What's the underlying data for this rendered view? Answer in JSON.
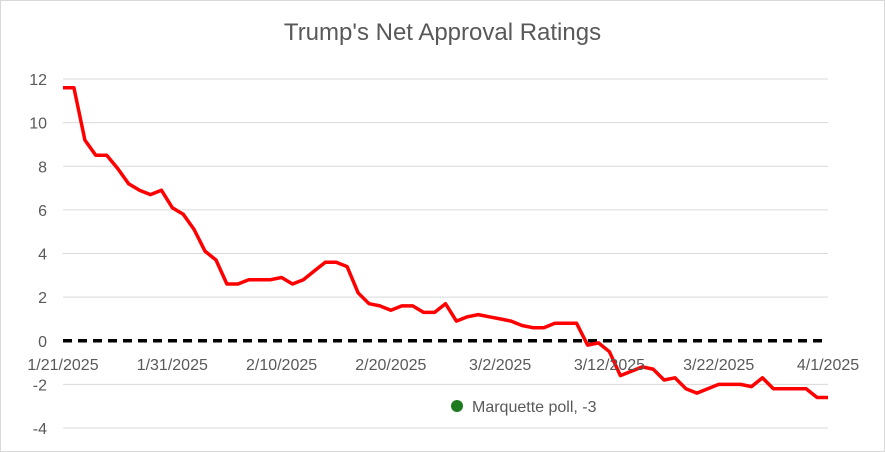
{
  "chart_data": {
    "type": "line",
    "title": "Trump's Net Approval Ratings",
    "xlabel": "",
    "ylabel": "",
    "ylim": [
      -4,
      12
    ],
    "y_ticks": [
      12,
      10,
      8,
      6,
      4,
      2,
      0,
      -2,
      -4
    ],
    "x_ticks": [
      "1/21/2025",
      "1/31/2025",
      "2/10/2025",
      "2/20/2025",
      "3/2/2025",
      "3/12/2025",
      "3/22/2025",
      "4/1/2025"
    ],
    "grid": true,
    "series": [
      {
        "color": "#ff0000",
        "x": [
          "1/21/2025",
          "1/22/2025",
          "1/23/2025",
          "1/24/2025",
          "1/25/2025",
          "1/26/2025",
          "1/27/2025",
          "1/28/2025",
          "1/29/2025",
          "1/30/2025",
          "1/31/2025",
          "2/1/2025",
          "2/2/2025",
          "2/3/2025",
          "2/4/2025",
          "2/5/2025",
          "2/6/2025",
          "2/7/2025",
          "2/8/2025",
          "2/9/2025",
          "2/10/2025",
          "2/11/2025",
          "2/12/2025",
          "2/13/2025",
          "2/14/2025",
          "2/15/2025",
          "2/16/2025",
          "2/17/2025",
          "2/18/2025",
          "2/19/2025",
          "2/20/2025",
          "2/21/2025",
          "2/22/2025",
          "2/23/2025",
          "2/24/2025",
          "2/25/2025",
          "2/26/2025",
          "2/27/2025",
          "2/28/2025",
          "3/1/2025",
          "3/2/2025",
          "3/3/2025",
          "3/4/2025",
          "3/5/2025",
          "3/6/2025",
          "3/7/2025",
          "3/8/2025",
          "3/9/2025",
          "3/10/2025",
          "3/11/2025",
          "3/12/2025",
          "3/13/2025",
          "3/14/2025",
          "3/15/2025",
          "3/16/2025",
          "3/17/2025",
          "3/18/2025",
          "3/19/2025",
          "3/20/2025",
          "3/21/2025",
          "3/22/2025",
          "3/23/2025",
          "3/24/2025",
          "3/25/2025",
          "3/26/2025",
          "3/27/2025",
          "3/28/2025",
          "3/29/2025",
          "3/30/2025",
          "3/31/2025",
          "4/1/2025"
        ],
        "values": [
          11.6,
          11.6,
          9.2,
          8.5,
          8.5,
          7.9,
          7.2,
          6.9,
          6.7,
          6.9,
          6.1,
          5.8,
          5.1,
          4.1,
          3.7,
          2.6,
          2.6,
          2.8,
          2.8,
          2.8,
          2.9,
          2.6,
          2.8,
          3.2,
          3.6,
          3.6,
          3.4,
          2.2,
          1.7,
          1.6,
          1.4,
          1.6,
          1.6,
          1.3,
          1.3,
          1.7,
          0.9,
          1.1,
          1.2,
          1.1,
          1.0,
          0.9,
          0.7,
          0.6,
          0.6,
          0.8,
          0.8,
          0.8,
          -0.2,
          -0.1,
          -0.5,
          -1.6,
          -1.4,
          -1.2,
          -1.3,
          -1.8,
          -1.7,
          -2.2,
          -2.4,
          -2.2,
          -2.0,
          -2.0,
          -2.0,
          -2.1,
          -1.7,
          -2.2,
          -2.2,
          -2.2,
          -2.2,
          -2.6,
          -2.6
        ]
      }
    ],
    "reference_line": {
      "y": 0,
      "color": "#000000",
      "style": "dashed"
    },
    "annotation_point": {
      "label": "Marquette poll, -3",
      "color": "#1e7a1e"
    }
  }
}
